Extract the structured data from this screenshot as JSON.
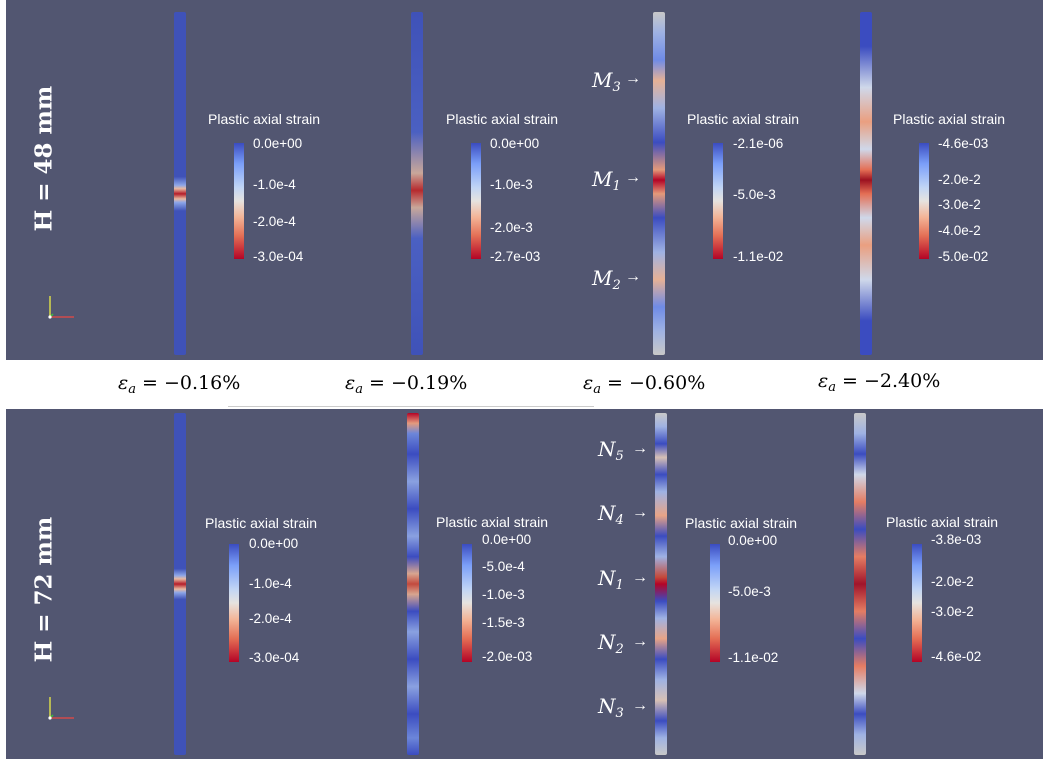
{
  "top": {
    "h_label": "H = 48 mm",
    "columns": [
      {
        "title": "Plastic axial strain",
        "ticks": [
          "0.0e+00",
          "-1.0e-4",
          "-2.0e-4",
          "-3.0e-04"
        ]
      },
      {
        "title": "Plastic axial strain",
        "ticks": [
          "0.0e+00",
          "-1.0e-3",
          "-2.0e-3",
          "-2.7e-03"
        ]
      },
      {
        "title": "Plastic axial strain",
        "ticks": [
          "-2.1e-06",
          "-5.0e-3",
          "-1.1e-02"
        ]
      },
      {
        "title": "Plastic axial strain",
        "ticks": [
          "-4.6e-03",
          "-2.0e-2",
          "-3.0e-2",
          "-4.0e-2",
          "-5.0e-02"
        ]
      }
    ],
    "markers": [
      {
        "base": "M",
        "sub": "3"
      },
      {
        "base": "M",
        "sub": "1"
      },
      {
        "base": "M",
        "sub": "2"
      }
    ]
  },
  "strains": [
    {
      "symbol": "ε",
      "sub": "a",
      "value": " = −0.16%"
    },
    {
      "symbol": "ε",
      "sub": "a",
      "value": " = −0.19%"
    },
    {
      "symbol": "ε",
      "sub": "a",
      "value": " = −0.60%"
    },
    {
      "symbol": "ε",
      "sub": "a",
      "value": " = −2.40%"
    }
  ],
  "bottom": {
    "h_label": "H = 72 mm",
    "columns": [
      {
        "title": "Plastic axial strain",
        "ticks": [
          "0.0e+00",
          "-1.0e-4",
          "-2.0e-4",
          "-3.0e-04"
        ]
      },
      {
        "title": "Plastic axial strain",
        "ticks": [
          "0.0e+00",
          "-5.0e-4",
          "-1.0e-3",
          "-1.5e-3",
          "-2.0e-03"
        ]
      },
      {
        "title": "Plastic axial strain",
        "ticks": [
          "0.0e+00",
          "-5.0e-3",
          "-1.1e-02"
        ]
      },
      {
        "title": "Plastic axial strain",
        "ticks": [
          "-3.8e-03",
          "-2.0e-2",
          "-3.0e-2",
          "-4.6e-02"
        ]
      }
    ],
    "markers": [
      {
        "base": "N",
        "sub": "5"
      },
      {
        "base": "N",
        "sub": "4"
      },
      {
        "base": "N",
        "sub": "1"
      },
      {
        "base": "N",
        "sub": "2"
      },
      {
        "base": "N",
        "sub": "3"
      }
    ]
  },
  "colors": {
    "background": "#525671",
    "colormap_low": "#3b4cc0",
    "colormap_mid": "#dddddd",
    "colormap_high": "#b40426"
  },
  "icons": [
    "axes-triad-icon",
    "right-arrow-icon"
  ]
}
